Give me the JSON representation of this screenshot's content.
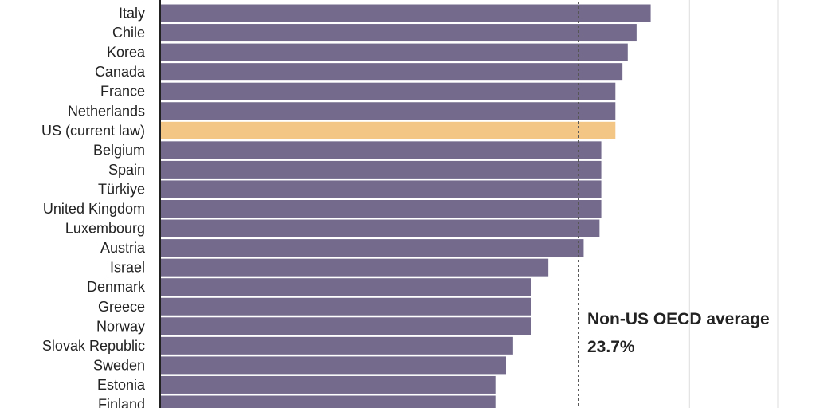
{
  "chart_data": {
    "type": "bar",
    "orientation": "horizontal",
    "categories": [
      "Italy",
      "Chile",
      "Korea",
      "Canada",
      "France",
      "Netherlands",
      "US (current law)",
      "Belgium",
      "Spain",
      "Türkiye",
      "United Kingdom",
      "Luxembourg",
      "Austria",
      "Israel",
      "Denmark",
      "Greece",
      "Norway",
      "Slovak Republic",
      "Sweden",
      "Estonia",
      "Finland"
    ],
    "values": [
      27.8,
      27.0,
      26.5,
      26.2,
      25.8,
      25.8,
      25.8,
      25.0,
      25.0,
      25.0,
      25.0,
      24.9,
      24.0,
      22.0,
      21.0,
      21.0,
      21.0,
      20.0,
      19.6,
      19.0,
      19.0
    ],
    "highlight": "US (current law)",
    "xlim": [
      0,
      35
    ],
    "gridlines": [
      30,
      35
    ],
    "reference_line": {
      "value": 23.7,
      "label": "Non-US OECD average",
      "value_label": "23.7%"
    },
    "colors": {
      "bar": "#736a8c",
      "highlight": "#f4c685",
      "axis": "#222222",
      "grid": "#dddddd",
      "reference": "#555555"
    }
  }
}
